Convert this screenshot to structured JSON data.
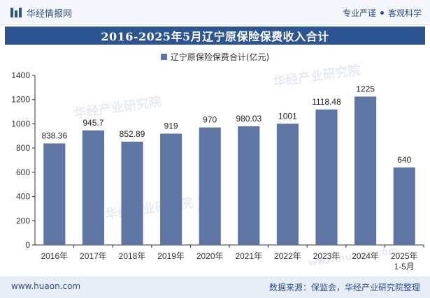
{
  "header": {
    "brand_name": "华经情报网",
    "slogan_left": "专业严谨",
    "slogan_right": "客观科学"
  },
  "watermark": {
    "text": "华经产业研究院",
    "url": "www.huaon.com"
  },
  "chart_data": {
    "type": "bar",
    "title": "2016-2025年5月辽宁原保险保费收入合计",
    "categories": [
      "2016年",
      "2017年",
      "2018年",
      "2019年",
      "2020年",
      "2021年",
      "2022年",
      "2023年",
      "2024年",
      "2025年\n1-5月"
    ],
    "series": [
      {
        "name": "辽宁原保险保费合计(亿元)",
        "values": [
          838.36,
          945.7,
          852.89,
          919,
          970,
          980.03,
          1001,
          1118.48,
          1225,
          640
        ],
        "labels": [
          "838.36",
          "945.7",
          "852.89",
          "919",
          "970",
          "980.03",
          "1001",
          "1118.48",
          "1225",
          "640"
        ],
        "color": "#5f76a5"
      }
    ],
    "ylim": [
      0,
      1400
    ],
    "yticks": [
      0,
      200,
      400,
      600,
      800,
      1000,
      1200,
      1400
    ],
    "xlabel": "",
    "ylabel": "",
    "grid": false,
    "legend": "top-center"
  },
  "footer": {
    "website": "www.huaon.com",
    "source": "数据来源：保监会，华经产业研究院整理"
  }
}
